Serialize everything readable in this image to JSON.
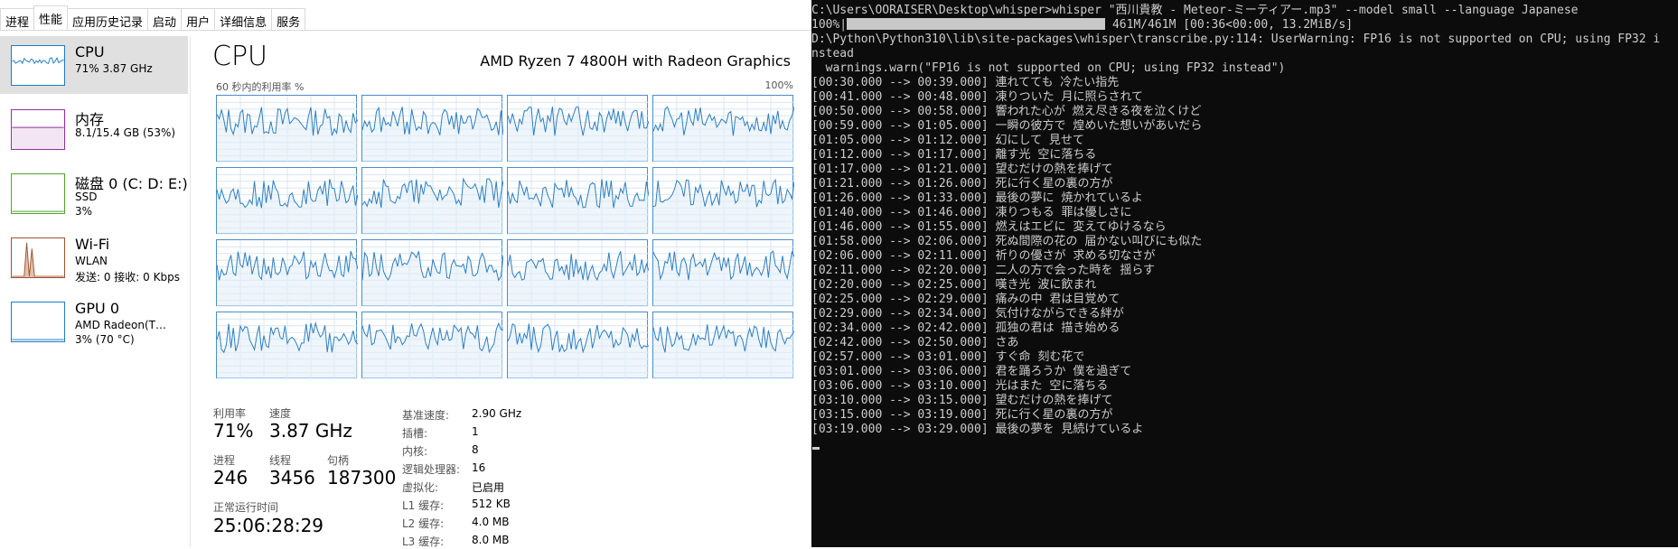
{
  "taskmgr": {
    "tabs": [
      "进程",
      "性能",
      "应用历史记录",
      "启动",
      "用户",
      "详细信息",
      "服务"
    ],
    "active_tab": 1,
    "sidebar": [
      {
        "title": "CPU",
        "sub1": "71% 3.87 GHz",
        "sub2": "",
        "color": "#1e7bc6"
      },
      {
        "title": "内存",
        "sub1": "8.1/15.4 GB (53%)",
        "sub2": "",
        "color": "#9a2aa8"
      },
      {
        "title": "磁盘 0 (C: D: E:)",
        "sub1": "SSD",
        "sub2": "3%",
        "color": "#4ca82a"
      },
      {
        "title": "Wi-Fi",
        "sub1": "WLAN",
        "sub2": "发送: 0 接收: 0 Kbps",
        "color": "#a0522d"
      },
      {
        "title": "GPU 0",
        "sub1": "AMD Radeon(T…",
        "sub2": "3% (70 °C)",
        "color": "#1e7bc6"
      }
    ],
    "main": {
      "title": "CPU",
      "model": "AMD Ryzen 7 4800H with Radeon Graphics",
      "graph_left_label": "60 秒内的利用率 %",
      "graph_right_label": "100%",
      "stats": {
        "utilization_label": "利用率",
        "utilization": "71%",
        "speed_label": "速度",
        "speed": "3.87 GHz",
        "processes_label": "进程",
        "processes": "246",
        "threads_label": "线程",
        "threads": "3456",
        "handles_label": "句柄",
        "handles": "187300",
        "uptime_label": "正常运行时间",
        "uptime": "25:06:28:29"
      },
      "specs": [
        {
          "label": "基准速度:",
          "value": "2.90 GHz"
        },
        {
          "label": "插槽:",
          "value": "1"
        },
        {
          "label": "内核:",
          "value": "8"
        },
        {
          "label": "逻辑处理器:",
          "value": "16"
        },
        {
          "label": "虚拟化:",
          "value": "已启用"
        },
        {
          "label": "L1 缓存:",
          "value": "512 KB"
        },
        {
          "label": "L2 缓存:",
          "value": "4.0 MB"
        },
        {
          "label": "L3 缓存:",
          "value": "8.0 MB"
        }
      ]
    }
  },
  "terminal": {
    "lines": [
      "C:\\Users\\OORAISER\\Desktop\\whisper>whisper \"西川貴教 - Meteor-ミーティアー.mp3\" --model small --language Japanese",
      "D:\\Python\\Python310\\lib\\site-packages\\whisper\\transcribe.py:114: UserWarning: FP16 is not supported on CPU; using FP32 i",
      "nstead",
      "  warnings.warn(\"FP16 is not supported on CPU; using FP32 instead\")",
      "[00:30.000 --> 00:39.000] 連れてても 冷たい指先",
      "[00:41.000 --> 00:48.000] 凍りついた 月に照らされて",
      "[00:50.000 --> 00:58.000] 響われた心が 燃え尽きる夜を泣くけど",
      "[00:59.000 --> 01:05.000] 一瞬の彼方で 煌めいた想いがあいだら",
      "[01:05.000 --> 01:12.000] 幻にして 見せて",
      "[01:12.000 --> 01:17.000] 離す光 空に落ちる",
      "[01:17.000 --> 01:21.000] 望むだけの熱を捧げて",
      "[01:21.000 --> 01:26.000] 死に行く星の裏の方が",
      "[01:26.000 --> 01:33.000] 最後の夢に 焼かれているよ",
      "[01:40.000 --> 01:46.000] 凍りつもる 罪は優しさに",
      "[01:46.000 --> 01:55.000] 燃えはエビに 変えてゆけるなら",
      "[01:58.000 --> 02:06.000] 死ぬ間際の花の 届かない叫びにも似た",
      "[02:06.000 --> 02:11.000] 祈りの優さが 求める切なさが",
      "[02:11.000 --> 02:20.000] 二人の方で会った時を 揺らす",
      "[02:20.000 --> 02:25.000] 嘆き光 波に飲まれ",
      "[02:25.000 --> 02:29.000] 痛みの中 君は目覚めて",
      "[02:29.000 --> 02:34.000] 気付けながらできる絆が",
      "[02:34.000 --> 02:42.000] 孤独の君は 描き始める",
      "[02:42.000 --> 02:50.000] さあ",
      "[02:57.000 --> 03:01.000] すぐ命 刻む花で",
      "[03:01.000 --> 03:06.000] 君を踊ろうか 僕を過ぎて",
      "[03:06.000 --> 03:10.000] 光はまた 空に落ちる",
      "[03:10.000 --> 03:15.000] 望むだけの熱を捧げて",
      "[03:15.000 --> 03:19.000] 死に行く星の裏の方が",
      "[03:19.000 --> 03:29.000] 最後の夢を 見続けているよ"
    ],
    "progress_prefix": "100%|",
    "progress_suffix": " 461M/461M [00:36<00:00, 13.2MiB/s]",
    "progress_fraction": 1.0
  }
}
